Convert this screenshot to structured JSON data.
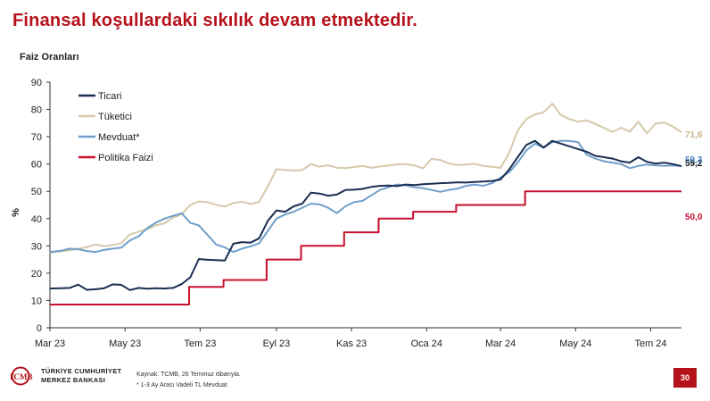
{
  "slide": {
    "title": "Finansal koşullardaki sıkılık devam etmektedir.",
    "page_number": "30"
  },
  "footer": {
    "logo_line1": "TÜRKİYE CUMHURİYET",
    "logo_line2": "MERKEZ BANKASI",
    "logo_mark": "TCMB",
    "source": "Kaynak: TCMB, 26 Temmuz itibarıyla.",
    "note": "* 1-3  Ay Arası Vadeli TL Mevduat"
  },
  "chart_data": {
    "type": "line",
    "title": "Faiz Oranları",
    "xlabel": "",
    "ylabel": "%",
    "ylim": [
      0,
      90
    ],
    "yticks": [
      0,
      10,
      20,
      30,
      40,
      50,
      60,
      70,
      80,
      90
    ],
    "x_tick_labels": [
      "Mar 23",
      "May 23",
      "Tem 23",
      "Eyl 23",
      "Kas 23",
      "Oca 24",
      "Mar 24",
      "May 24",
      "Tem 24"
    ],
    "x_tick_dates": [
      "2023-03-01",
      "2023-05-01",
      "2023-07-01",
      "2023-09-01",
      "2023-11-01",
      "2024-01-01",
      "2024-03-01",
      "2024-05-01",
      "2024-07-01"
    ],
    "xlim": [
      "2023-03-01",
      "2024-07-26"
    ],
    "grid": false,
    "legend_position": "top-left",
    "series": [
      {
        "name": "Ticari",
        "color": "#1b2f52",
        "end_label": "59,2",
        "points": [
          [
            "2023-03-01",
            14.4
          ],
          [
            "2023-03-10",
            14.5
          ],
          [
            "2023-03-17",
            14.6
          ],
          [
            "2023-03-24",
            15.8
          ],
          [
            "2023-03-31",
            13.9
          ],
          [
            "2023-04-07",
            14.1
          ],
          [
            "2023-04-14",
            14.5
          ],
          [
            "2023-04-21",
            15.9
          ],
          [
            "2023-04-28",
            15.7
          ],
          [
            "2023-05-05",
            13.8
          ],
          [
            "2023-05-12",
            14.6
          ],
          [
            "2023-05-19",
            14.3
          ],
          [
            "2023-05-26",
            14.5
          ],
          [
            "2023-06-02",
            14.4
          ],
          [
            "2023-06-09",
            14.6
          ],
          [
            "2023-06-16",
            16.0
          ],
          [
            "2023-06-23",
            18.5
          ],
          [
            "2023-06-30",
            25.2
          ],
          [
            "2023-07-07",
            24.9
          ],
          [
            "2023-07-14",
            24.8
          ],
          [
            "2023-07-21",
            24.6
          ],
          [
            "2023-07-28",
            30.8
          ],
          [
            "2023-08-04",
            31.4
          ],
          [
            "2023-08-11",
            31.2
          ],
          [
            "2023-08-18",
            32.8
          ],
          [
            "2023-08-25",
            39.2
          ],
          [
            "2023-09-01",
            43.0
          ],
          [
            "2023-09-08",
            42.5
          ],
          [
            "2023-09-15",
            44.5
          ],
          [
            "2023-09-22",
            45.5
          ],
          [
            "2023-09-29",
            49.5
          ],
          [
            "2023-10-06",
            49.2
          ],
          [
            "2023-10-13",
            48.4
          ],
          [
            "2023-10-20",
            48.8
          ],
          [
            "2023-10-27",
            50.5
          ],
          [
            "2023-11-03",
            50.6
          ],
          [
            "2023-11-10",
            50.9
          ],
          [
            "2023-11-17",
            51.6
          ],
          [
            "2023-11-24",
            52.0
          ],
          [
            "2023-12-01",
            52.1
          ],
          [
            "2023-12-08",
            51.9
          ],
          [
            "2023-12-15",
            52.5
          ],
          [
            "2023-12-22",
            52.3
          ],
          [
            "2023-12-29",
            52.6
          ],
          [
            "2024-01-05",
            52.8
          ],
          [
            "2024-01-12",
            53.0
          ],
          [
            "2024-01-19",
            53.1
          ],
          [
            "2024-01-26",
            53.3
          ],
          [
            "2024-02-02",
            53.2
          ],
          [
            "2024-02-09",
            53.4
          ],
          [
            "2024-02-16",
            53.6
          ],
          [
            "2024-02-23",
            53.8
          ],
          [
            "2024-03-01",
            54.3
          ],
          [
            "2024-03-08",
            58.0
          ],
          [
            "2024-03-15",
            62.5
          ],
          [
            "2024-03-22",
            67.0
          ],
          [
            "2024-03-29",
            68.5
          ],
          [
            "2024-04-05",
            66.0
          ],
          [
            "2024-04-12",
            68.5
          ],
          [
            "2024-04-19",
            67.5
          ],
          [
            "2024-04-26",
            66.5
          ],
          [
            "2024-05-03",
            65.5
          ],
          [
            "2024-05-10",
            64.5
          ],
          [
            "2024-05-17",
            63.0
          ],
          [
            "2024-05-24",
            62.5
          ],
          [
            "2024-05-31",
            62.0
          ],
          [
            "2024-06-07",
            61.0
          ],
          [
            "2024-06-14",
            60.5
          ],
          [
            "2024-06-21",
            62.5
          ],
          [
            "2024-06-28",
            60.8
          ],
          [
            "2024-07-05",
            60.2
          ],
          [
            "2024-07-12",
            60.5
          ],
          [
            "2024-07-19",
            60.0
          ],
          [
            "2024-07-26",
            59.2
          ]
        ]
      },
      {
        "name": "Tüketici",
        "color": "#d6c9ab",
        "end_label": "71,6",
        "points": [
          [
            "2023-03-01",
            27.5
          ],
          [
            "2023-03-10",
            28.0
          ],
          [
            "2023-03-17",
            28.4
          ],
          [
            "2023-03-24",
            28.9
          ],
          [
            "2023-03-31",
            29.6
          ],
          [
            "2023-04-07",
            30.5
          ],
          [
            "2023-04-14",
            29.9
          ],
          [
            "2023-04-21",
            30.3
          ],
          [
            "2023-04-28",
            31.0
          ],
          [
            "2023-05-05",
            34.2
          ],
          [
            "2023-05-12",
            35.2
          ],
          [
            "2023-05-19",
            36.1
          ],
          [
            "2023-05-26",
            37.5
          ],
          [
            "2023-06-02",
            38.3
          ],
          [
            "2023-06-09",
            40.4
          ],
          [
            "2023-06-16",
            41.5
          ],
          [
            "2023-06-23",
            45.0
          ],
          [
            "2023-06-30",
            46.3
          ],
          [
            "2023-07-07",
            46.0
          ],
          [
            "2023-07-14",
            45.1
          ],
          [
            "2023-07-21",
            44.4
          ],
          [
            "2023-07-28",
            45.7
          ],
          [
            "2023-08-04",
            46.2
          ],
          [
            "2023-08-11",
            45.4
          ],
          [
            "2023-08-18",
            46.1
          ],
          [
            "2023-08-25",
            51.9
          ],
          [
            "2023-09-01",
            58.1
          ],
          [
            "2023-09-08",
            57.8
          ],
          [
            "2023-09-15",
            57.6
          ],
          [
            "2023-09-22",
            57.8
          ],
          [
            "2023-09-29",
            60.0
          ],
          [
            "2023-10-06",
            59.0
          ],
          [
            "2023-10-13",
            59.6
          ],
          [
            "2023-10-20",
            58.6
          ],
          [
            "2023-10-27",
            58.5
          ],
          [
            "2023-11-03",
            58.9
          ],
          [
            "2023-11-10",
            59.3
          ],
          [
            "2023-11-17",
            58.6
          ],
          [
            "2023-11-24",
            59.1
          ],
          [
            "2023-12-01",
            59.5
          ],
          [
            "2023-12-08",
            59.8
          ],
          [
            "2023-12-15",
            60.0
          ],
          [
            "2023-12-22",
            59.5
          ],
          [
            "2023-12-29",
            58.4
          ],
          [
            "2024-01-05",
            61.9
          ],
          [
            "2024-01-12",
            61.5
          ],
          [
            "2024-01-19",
            60.2
          ],
          [
            "2024-01-26",
            59.6
          ],
          [
            "2024-02-02",
            59.8
          ],
          [
            "2024-02-09",
            60.1
          ],
          [
            "2024-02-16",
            59.3
          ],
          [
            "2024-02-23",
            59.0
          ],
          [
            "2024-03-01",
            58.6
          ],
          [
            "2024-03-08",
            64.0
          ],
          [
            "2024-03-15",
            72.2
          ],
          [
            "2024-03-22",
            76.5
          ],
          [
            "2024-03-29",
            78.2
          ],
          [
            "2024-04-05",
            79.0
          ],
          [
            "2024-04-12",
            82.1
          ],
          [
            "2024-04-19",
            78.0
          ],
          [
            "2024-04-26",
            76.5
          ],
          [
            "2024-05-03",
            75.5
          ],
          [
            "2024-05-10",
            76.0
          ],
          [
            "2024-05-17",
            74.7
          ],
          [
            "2024-05-24",
            73.2
          ],
          [
            "2024-05-31",
            71.8
          ],
          [
            "2024-06-07",
            73.3
          ],
          [
            "2024-06-14",
            71.8
          ],
          [
            "2024-06-21",
            75.5
          ],
          [
            "2024-06-28",
            71.2
          ],
          [
            "2024-07-05",
            74.8
          ],
          [
            "2024-07-12",
            75.2
          ],
          [
            "2024-07-19",
            73.8
          ],
          [
            "2024-07-26",
            71.6
          ]
        ]
      },
      {
        "name": "Mevduat*",
        "color": "#6f9fcb",
        "end_label": "59,3",
        "points": [
          [
            "2023-03-01",
            27.8
          ],
          [
            "2023-03-10",
            28.2
          ],
          [
            "2023-03-17",
            29.0
          ],
          [
            "2023-03-24",
            28.8
          ],
          [
            "2023-03-31",
            28.1
          ],
          [
            "2023-04-07",
            27.8
          ],
          [
            "2023-04-14",
            28.5
          ],
          [
            "2023-04-21",
            29.0
          ],
          [
            "2023-04-28",
            29.4
          ],
          [
            "2023-05-05",
            32.0
          ],
          [
            "2023-05-12",
            33.5
          ],
          [
            "2023-05-19",
            36.5
          ],
          [
            "2023-05-26",
            38.5
          ],
          [
            "2023-06-02",
            40.0
          ],
          [
            "2023-06-09",
            41.0
          ],
          [
            "2023-06-16",
            42.0
          ],
          [
            "2023-06-23",
            38.5
          ],
          [
            "2023-06-30",
            37.5
          ],
          [
            "2023-07-07",
            34.0
          ],
          [
            "2023-07-14",
            30.5
          ],
          [
            "2023-07-21",
            29.5
          ],
          [
            "2023-07-28",
            27.8
          ],
          [
            "2023-08-04",
            29.0
          ],
          [
            "2023-08-11",
            29.8
          ],
          [
            "2023-08-18",
            31.0
          ],
          [
            "2023-08-25",
            35.5
          ],
          [
            "2023-09-01",
            40.0
          ],
          [
            "2023-09-08",
            41.5
          ],
          [
            "2023-09-15",
            42.5
          ],
          [
            "2023-09-22",
            44.0
          ],
          [
            "2023-09-29",
            45.5
          ],
          [
            "2023-10-06",
            45.2
          ],
          [
            "2023-10-13",
            44.0
          ],
          [
            "2023-10-20",
            42.0
          ],
          [
            "2023-10-27",
            44.5
          ],
          [
            "2023-11-03",
            46.0
          ],
          [
            "2023-11-10",
            46.5
          ],
          [
            "2023-11-17",
            48.5
          ],
          [
            "2023-11-24",
            50.5
          ],
          [
            "2023-12-01",
            51.5
          ],
          [
            "2023-12-08",
            52.5
          ],
          [
            "2023-12-15",
            52.2
          ],
          [
            "2023-12-22",
            51.5
          ],
          [
            "2023-12-29",
            51.2
          ],
          [
            "2024-01-05",
            50.5
          ],
          [
            "2024-01-12",
            49.8
          ],
          [
            "2024-01-19",
            50.5
          ],
          [
            "2024-01-26",
            51.0
          ],
          [
            "2024-02-02",
            52.0
          ],
          [
            "2024-02-09",
            52.5
          ],
          [
            "2024-02-16",
            52.0
          ],
          [
            "2024-02-23",
            53.0
          ],
          [
            "2024-03-01",
            55.0
          ],
          [
            "2024-03-08",
            57.0
          ],
          [
            "2024-03-15",
            60.5
          ],
          [
            "2024-03-22",
            65.0
          ],
          [
            "2024-03-29",
            67.5
          ],
          [
            "2024-04-05",
            66.0
          ],
          [
            "2024-04-12",
            68.0
          ],
          [
            "2024-04-19",
            68.5
          ],
          [
            "2024-04-26",
            68.5
          ],
          [
            "2024-05-03",
            68.0
          ],
          [
            "2024-05-10",
            63.5
          ],
          [
            "2024-05-17",
            62.0
          ],
          [
            "2024-05-24",
            61.0
          ],
          [
            "2024-05-31",
            60.5
          ],
          [
            "2024-06-07",
            60.0
          ],
          [
            "2024-06-14",
            58.5
          ],
          [
            "2024-06-21",
            59.3
          ],
          [
            "2024-06-28",
            59.8
          ],
          [
            "2024-07-05",
            59.5
          ],
          [
            "2024-07-12",
            59.3
          ],
          [
            "2024-07-19",
            59.5
          ],
          [
            "2024-07-26",
            59.3
          ]
        ]
      },
      {
        "name": "Politika Faizi",
        "color": "#c8102e",
        "end_label": "50,0",
        "step": true,
        "points": [
          [
            "2023-03-01",
            8.5
          ],
          [
            "2023-06-22",
            15.0
          ],
          [
            "2023-07-20",
            17.5
          ],
          [
            "2023-08-24",
            25.0
          ],
          [
            "2023-09-21",
            30.0
          ],
          [
            "2023-10-26",
            35.0
          ],
          [
            "2023-11-23",
            40.0
          ],
          [
            "2023-12-21",
            42.5
          ],
          [
            "2024-01-25",
            45.0
          ],
          [
            "2024-03-21",
            50.0
          ],
          [
            "2024-07-26",
            50.0
          ]
        ]
      }
    ]
  }
}
